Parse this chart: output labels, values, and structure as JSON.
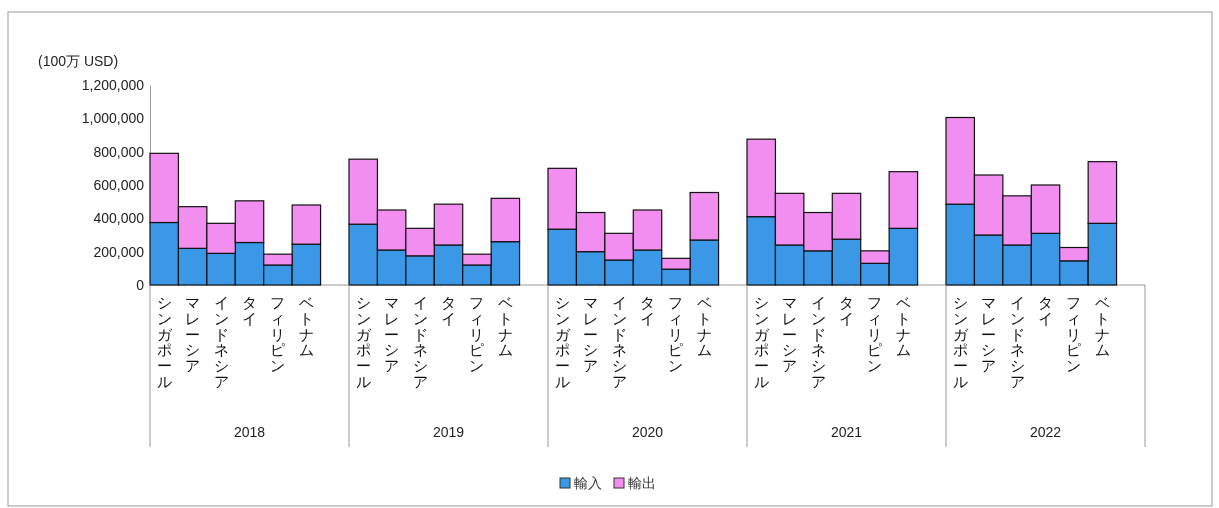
{
  "chart_data": {
    "type": "bar",
    "stacked": true,
    "ylabel": "(100万 USD)",
    "categories": [
      "シンガポール",
      "マレーシア",
      "インドネシア",
      "タイ",
      "フィリピン",
      "ベトナム",
      "シンガポール",
      "マレーシア",
      "インドネシア",
      "タイ",
      "フィリピン",
      "ベトナム",
      "シンガポール",
      "マレーシア",
      "インドネシア",
      "タイ",
      "フィリピン",
      "ベトナム",
      "シンガポール",
      "マレーシア",
      "インドネシア",
      "タイ",
      "フィリピン",
      "ベトナム",
      "シンガポール",
      "マレーシア",
      "インドネシア",
      "タイ",
      "フィリピン",
      "ベトナム"
    ],
    "annotations": [
      "2018",
      "2019",
      "2020",
      "2021",
      "2022"
    ],
    "series": [
      {
        "name": "輸入",
        "color": "#3a98e6",
        "values": [
          375000,
          220000,
          190000,
          255000,
          120000,
          245000,
          365000,
          210000,
          175000,
          240000,
          120000,
          260000,
          335000,
          200000,
          150000,
          210000,
          95000,
          270000,
          410000,
          240000,
          205000,
          275000,
          130000,
          340000,
          485000,
          300000,
          240000,
          310000,
          145000,
          370000
        ]
      },
      {
        "name": "輸出",
        "color": "#f28ef0",
        "values": [
          415000,
          250000,
          180000,
          250000,
          65000,
          235000,
          390000,
          240000,
          165000,
          245000,
          65000,
          260000,
          365000,
          235000,
          160000,
          240000,
          65000,
          285000,
          465000,
          310000,
          230000,
          275000,
          75000,
          340000,
          520000,
          360000,
          295000,
          290000,
          80000,
          370000
        ]
      }
    ],
    "ylim": [
      0,
      1200000
    ],
    "yticks": [
      {
        "value": 0,
        "label": "0"
      },
      {
        "value": 200000,
        "label": "200,000"
      },
      {
        "value": 400000,
        "label": "400,000"
      },
      {
        "value": 600000,
        "label": "600,000"
      },
      {
        "value": 800000,
        "label": "800,000"
      },
      {
        "value": 1000000,
        "label": "1,000,000"
      },
      {
        "value": 1200000,
        "label": "1,200,000"
      }
    ],
    "legend": "bottom"
  }
}
